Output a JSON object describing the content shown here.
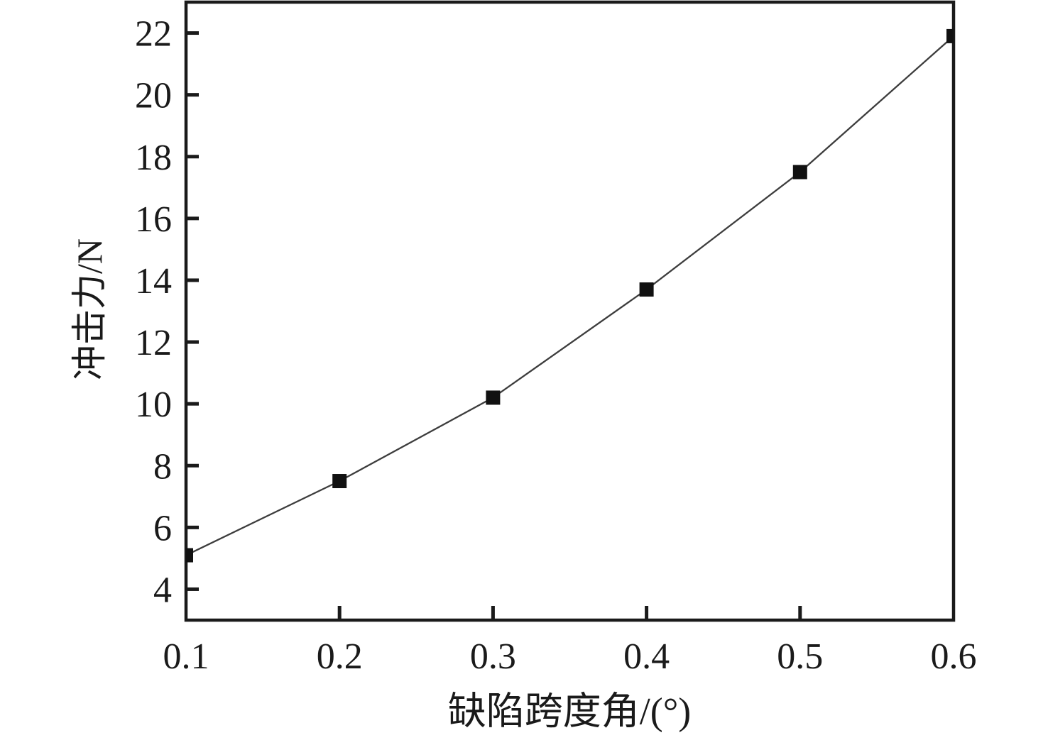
{
  "chart_data": {
    "type": "line",
    "title": "",
    "xlabel": "缺陷跨度角/(°)",
    "ylabel": "冲击力/N",
    "x": [
      0.1,
      0.2,
      0.3,
      0.4,
      0.5,
      0.6
    ],
    "series": [
      {
        "name": "冲击力",
        "values": [
          5.1,
          7.5,
          10.2,
          13.7,
          17.5,
          21.9
        ]
      }
    ],
    "x_tick_labels": [
      "0.1",
      "0.2",
      "0.3",
      "0.4",
      "0.5",
      "0.6"
    ],
    "y_tick_values": [
      4,
      6,
      8,
      10,
      12,
      14,
      16,
      18,
      20,
      22
    ],
    "xlim": [
      0.1,
      0.6
    ],
    "ylim": [
      3,
      23
    ],
    "grid": false,
    "legend_position": "none",
    "marker": "filled-square",
    "colors": {
      "line": "#3d3d3d",
      "marker": "#111111",
      "axis": "#1a1a1a",
      "background": "#ffffff"
    }
  }
}
